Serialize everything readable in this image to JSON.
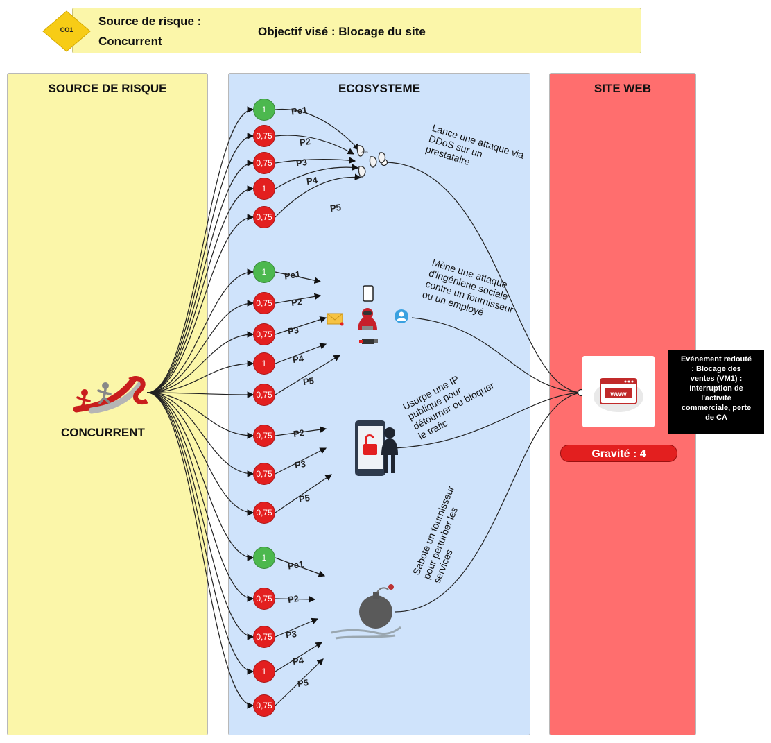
{
  "header": {
    "badge": "CO1",
    "source_label": "Source de risque :",
    "source_value": "Concurrent",
    "objective": "Objectif visé : Blocage du site"
  },
  "lanes": {
    "source": "SOURCE DE RISQUE",
    "ecosystem": "ECOSYSTEME",
    "website": "SITE WEB"
  },
  "actor": "CONCURRENT",
  "paths": [
    {
      "description": [
        "Lance une attaque via",
        "DDoS sur un",
        "prestataire"
      ],
      "icon": "ddos-icon",
      "steps": [
        {
          "value": "1",
          "status": "green",
          "label": "Pe1"
        },
        {
          "value": "0,75",
          "status": "red",
          "label": "P2"
        },
        {
          "value": "0,75",
          "status": "red",
          "label": "P3"
        },
        {
          "value": "1",
          "status": "red",
          "label": "P4"
        },
        {
          "value": "0,75",
          "status": "red",
          "label": "P5"
        }
      ]
    },
    {
      "description": [
        "Mène une attaque",
        "d'ingénierie sociale",
        "contre un fournisseur",
        "ou un employé"
      ],
      "icon": "social-engineering-icon",
      "steps": [
        {
          "value": "1",
          "status": "green",
          "label": "Pe1"
        },
        {
          "value": "0,75",
          "status": "red",
          "label": "P2"
        },
        {
          "value": "0,75",
          "status": "red",
          "label": "P3"
        },
        {
          "value": "1",
          "status": "red",
          "label": "P4"
        },
        {
          "value": "0,75",
          "status": "red",
          "label": "P5"
        }
      ]
    },
    {
      "description": [
        "Usurpe une IP",
        "publique pour",
        "détourner ou bloquer",
        "le trafic"
      ],
      "icon": "ip-spoofing-icon",
      "steps": [
        {
          "value": "0,75",
          "status": "red",
          "label": "P2"
        },
        {
          "value": "0,75",
          "status": "red",
          "label": "P3"
        },
        {
          "value": "0,75",
          "status": "red",
          "label": "P5"
        }
      ]
    },
    {
      "description": [
        "Sabote un fournisseur",
        "pour perturber les",
        "services"
      ],
      "icon": "sabotage-bomb-icon",
      "steps": [
        {
          "value": "1",
          "status": "green",
          "label": "Pe1"
        },
        {
          "value": "0,75",
          "status": "red",
          "label": "P2"
        },
        {
          "value": "0,75",
          "status": "red",
          "label": "P3"
        },
        {
          "value": "1",
          "status": "red",
          "label": "P4"
        },
        {
          "value": "0,75",
          "status": "red",
          "label": "P5"
        }
      ]
    }
  ],
  "feared_event": {
    "lines": [
      "Evénement redouté",
      ": Blocage des",
      "ventes (VM1) :",
      "Interruption de",
      "l'activité",
      "commerciale, perte",
      "de CA"
    ],
    "severity": "Gravité : 4"
  },
  "colors": {
    "header_bg": "#fbf6a9",
    "badge": "#f7cc16",
    "source_lane": "#fbf6a9",
    "ecosystem_lane": "#cfe3fb",
    "website_lane": "#ff6e6e",
    "green_node": "#4cb84e",
    "red_node": "#e31f1f"
  }
}
